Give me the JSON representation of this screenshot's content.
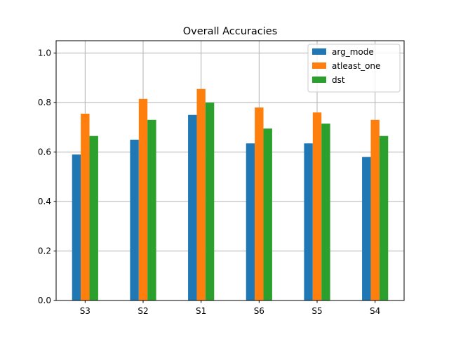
{
  "chart_data": {
    "type": "bar",
    "title": "Overall Accuracies",
    "xlabel": "",
    "ylabel": "",
    "categories": [
      "S3",
      "S2",
      "S1",
      "S6",
      "S5",
      "S4"
    ],
    "series": [
      {
        "name": "arg_mode",
        "color": "#1f77b4",
        "values": [
          0.59,
          0.65,
          0.75,
          0.635,
          0.635,
          0.58
        ]
      },
      {
        "name": "atleast_one",
        "color": "#ff7f0e",
        "values": [
          0.755,
          0.815,
          0.855,
          0.78,
          0.76,
          0.73
        ]
      },
      {
        "name": "dst",
        "color": "#2ca02c",
        "values": [
          0.665,
          0.73,
          0.8,
          0.695,
          0.715,
          0.665
        ]
      }
    ],
    "ylim": [
      0,
      1.05
    ],
    "yticks": [
      "0.0",
      "0.2",
      "0.4",
      "0.6",
      "0.8",
      "1.0"
    ],
    "grid": true,
    "legend_position": "top-right"
  }
}
